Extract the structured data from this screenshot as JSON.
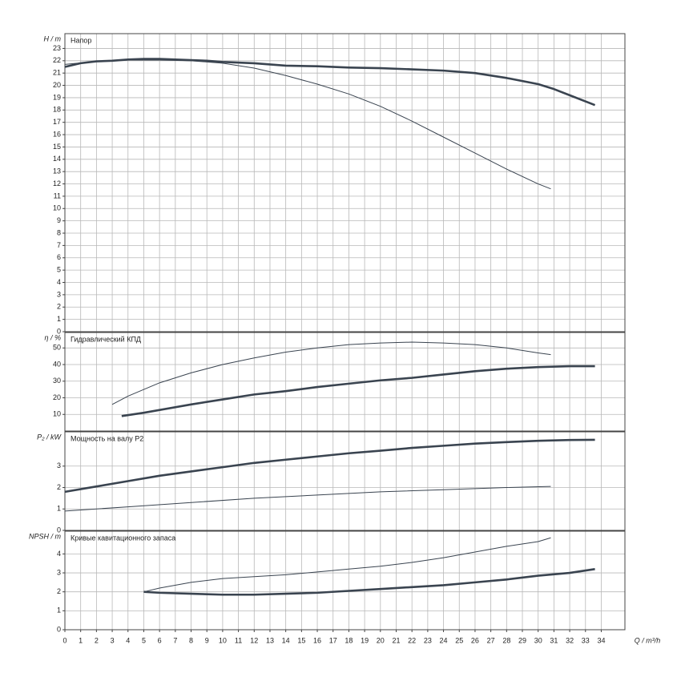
{
  "chart_data": [
    {
      "type": "line",
      "title": "Напор",
      "ylabel": "H / m",
      "ylim": [
        0,
        24.2
      ],
      "yticks": [
        0,
        1,
        2,
        3,
        4,
        5,
        6,
        7,
        8,
        9,
        10,
        11,
        12,
        13,
        14,
        15,
        16,
        17,
        18,
        19,
        20,
        21,
        22,
        23
      ],
      "grid": true,
      "series": [
        {
          "color": "#3a4450",
          "width": "thick",
          "x": [
            0,
            1,
            2,
            3,
            4,
            5,
            6,
            7,
            8,
            9,
            10,
            12,
            14,
            16,
            18,
            20,
            22,
            24,
            26,
            28,
            30,
            31,
            32,
            33,
            33.6
          ],
          "values": [
            21.5,
            21.8,
            21.95,
            22.0,
            22.1,
            22.15,
            22.15,
            22.1,
            22.05,
            22.0,
            21.9,
            21.8,
            21.6,
            21.55,
            21.45,
            21.4,
            21.3,
            21.2,
            21.0,
            20.6,
            20.1,
            19.7,
            19.2,
            18.7,
            18.4
          ]
        },
        {
          "color": "#3a4450",
          "width": "thin",
          "x": [
            0,
            2,
            4,
            6,
            8,
            10,
            12,
            14,
            16,
            18,
            20,
            22,
            24,
            26,
            28,
            30,
            30.8
          ],
          "values": [
            21.7,
            21.95,
            22.05,
            22.05,
            22.0,
            21.8,
            21.4,
            20.8,
            20.1,
            19.3,
            18.3,
            17.1,
            15.8,
            14.5,
            13.2,
            12.0,
            11.6
          ]
        }
      ]
    },
    {
      "type": "line",
      "title": "Гидравлический КПД",
      "ylabel": "η / %",
      "ylim": [
        0,
        59.3
      ],
      "yticks": [
        10,
        20,
        30,
        40,
        50
      ],
      "grid": true,
      "series": [
        {
          "color": "#3a4450",
          "width": "thin",
          "x": [
            3,
            4,
            6,
            8,
            10,
            12,
            14,
            16,
            18,
            20,
            22,
            24,
            26,
            28,
            30,
            30.8
          ],
          "values": [
            16,
            21,
            29,
            35,
            40,
            44,
            47.5,
            50,
            52,
            53,
            53.5,
            53,
            52,
            50,
            47,
            46
          ]
        },
        {
          "color": "#3a4450",
          "width": "thick",
          "x": [
            3.6,
            5,
            8,
            10,
            12,
            14,
            16,
            18,
            20,
            22,
            24,
            26,
            28,
            30,
            32,
            33.6
          ],
          "values": [
            9,
            11,
            16,
            19,
            22,
            24,
            26.5,
            28.5,
            30.5,
            32,
            34,
            36,
            37.5,
            38.5,
            39,
            39
          ]
        }
      ]
    },
    {
      "type": "line",
      "title": "Мощность на валу P2",
      "ylabel": "P₂ / kW",
      "ylim": [
        0,
        4.6
      ],
      "yticks": [
        0,
        1,
        2,
        3
      ],
      "grid": true,
      "series": [
        {
          "color": "#3a4450",
          "width": "thick",
          "x": [
            0,
            2,
            4,
            6,
            8,
            10,
            12,
            14,
            16,
            18,
            20,
            22,
            24,
            26,
            28,
            30,
            32,
            33.6
          ],
          "values": [
            1.8,
            2.05,
            2.3,
            2.55,
            2.75,
            2.95,
            3.15,
            3.3,
            3.45,
            3.6,
            3.72,
            3.85,
            3.95,
            4.05,
            4.12,
            4.18,
            4.22,
            4.23
          ]
        },
        {
          "color": "#3a4450",
          "width": "thin",
          "x": [
            0,
            4,
            8,
            12,
            16,
            20,
            24,
            28,
            30.8
          ],
          "values": [
            0.9,
            1.1,
            1.3,
            1.5,
            1.65,
            1.8,
            1.9,
            2.0,
            2.05
          ]
        }
      ]
    },
    {
      "type": "line",
      "title": "Кривые кавитационного запаса",
      "ylabel": "NPSH / m",
      "ylim": [
        0,
        5.2
      ],
      "yticks": [
        0,
        1,
        2,
        3,
        4
      ],
      "grid": true,
      "xlabel": "Q / m³/h",
      "xlim": [
        0,
        35.5
      ],
      "xticks": [
        0,
        1,
        2,
        3,
        4,
        5,
        6,
        7,
        8,
        9,
        10,
        11,
        12,
        13,
        14,
        15,
        16,
        17,
        18,
        19,
        20,
        21,
        22,
        23,
        24,
        25,
        26,
        27,
        28,
        29,
        30,
        31,
        32,
        33,
        34
      ],
      "series": [
        {
          "color": "#3a4450",
          "width": "thin",
          "x": [
            5,
            6,
            8,
            10,
            12,
            14,
            16,
            18,
            20,
            22,
            24,
            26,
            28,
            30,
            30.8
          ],
          "values": [
            2.0,
            2.2,
            2.5,
            2.7,
            2.8,
            2.9,
            3.05,
            3.2,
            3.35,
            3.55,
            3.8,
            4.1,
            4.4,
            4.65,
            4.85
          ]
        },
        {
          "color": "#3a4450",
          "width": "thick",
          "x": [
            5,
            6,
            8,
            10,
            12,
            14,
            16,
            18,
            20,
            22,
            24,
            26,
            28,
            30,
            32,
            33.6
          ],
          "values": [
            2.0,
            1.95,
            1.9,
            1.85,
            1.85,
            1.9,
            1.95,
            2.05,
            2.15,
            2.25,
            2.35,
            2.5,
            2.65,
            2.85,
            3.0,
            3.2
          ]
        }
      ]
    }
  ]
}
